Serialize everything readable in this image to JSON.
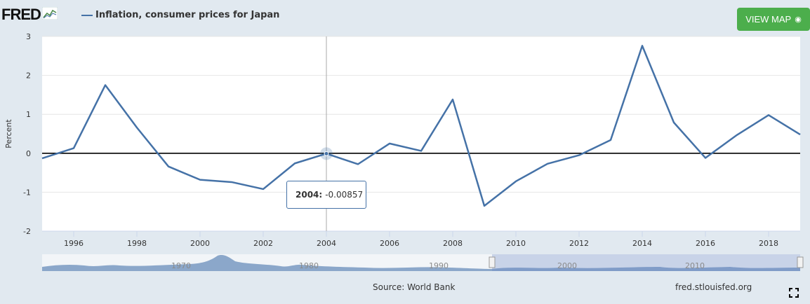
{
  "header": {
    "logo_text": "FRED",
    "legend_label": "Inflation, consumer prices for Japan",
    "view_map_label": "VIEW MAP"
  },
  "footer": {
    "source": "Source: World Bank",
    "site": "fred.stlouisfed.org"
  },
  "tooltip": {
    "label": "2004:",
    "value": "-0.00857"
  },
  "colors": {
    "series": "#4572a7",
    "button": "#4cae4c",
    "background": "#e1e9f0"
  },
  "icons": {
    "logo_chart": "logo-chart-icon",
    "globe": "globe-icon",
    "expand": "expand-icon"
  },
  "chart_data": {
    "type": "line",
    "ylabel": "Percent",
    "ylim": [
      -2,
      3
    ],
    "yticks": [
      3,
      2,
      1,
      0,
      -1,
      -2
    ],
    "xlim": [
      1995,
      2019
    ],
    "xticks": [
      1996,
      1998,
      2000,
      2002,
      2004,
      2006,
      2008,
      2010,
      2012,
      2014,
      2016,
      2018
    ],
    "grid": true,
    "series": [
      {
        "name": "Inflation, consumer prices for Japan",
        "x": [
          1995,
          1996,
          1997,
          1998,
          1999,
          2000,
          2001,
          2002,
          2003,
          2004,
          2005,
          2006,
          2007,
          2008,
          2009,
          2010,
          2011,
          2012,
          2013,
          2014,
          2015,
          2016,
          2017,
          2018,
          2019
        ],
        "y": [
          -0.13,
          0.13,
          1.75,
          0.66,
          -0.34,
          -0.68,
          -0.74,
          -0.92,
          -0.26,
          -0.01,
          -0.28,
          0.25,
          0.06,
          1.38,
          -1.35,
          -0.72,
          -0.27,
          -0.05,
          0.34,
          2.76,
          0.79,
          -0.12,
          0.47,
          0.98,
          0.48
        ]
      }
    ],
    "navigator": {
      "labels": [
        "1970",
        "1980",
        "1990",
        "2000",
        "2010"
      ]
    }
  }
}
